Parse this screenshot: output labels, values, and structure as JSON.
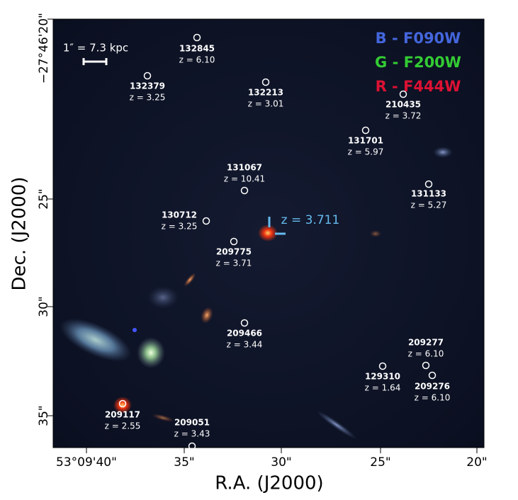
{
  "image": {
    "legend": [
      "B - F090W",
      "G - F200W",
      "R - F444W"
    ],
    "scale_bar": "1″ = 7.3 kpc",
    "main_redshift": "z = 3.711",
    "x_axis": {
      "label": "R.A. (J2000)",
      "ticks": [
        "53°09'40\"",
        "35\"",
        "30\"",
        "25\"",
        "20\""
      ]
    },
    "y_axis": {
      "label": "Dec. (J2000)",
      "ticks": [
        "−27°46'20\"",
        "25\"",
        "30\"",
        "35\""
      ]
    },
    "objects": [
      {
        "id": "132845",
        "z": "z = 6.10"
      },
      {
        "id": "132379",
        "z": "z = 3.25"
      },
      {
        "id": "132213",
        "z": "z = 3.01"
      },
      {
        "id": "210435",
        "z": "z = 3.72"
      },
      {
        "id": "131701",
        "z": "z = 5.97"
      },
      {
        "id": "131067",
        "z": "z = 10.41"
      },
      {
        "id": "131133",
        "z": "z = 5.27"
      },
      {
        "id": "130712",
        "z": "z = 3.25"
      },
      {
        "id": "209775",
        "z": "z = 3.71"
      },
      {
        "id": "209466",
        "z": "z = 3.44"
      },
      {
        "id": "209277",
        "z": "z = 6.10"
      },
      {
        "id": "129310",
        "z": "z = 1.64"
      },
      {
        "id": "209276",
        "z": "z = 6.10"
      },
      {
        "id": "209117",
        "z": "z = 2.55"
      },
      {
        "id": "209051",
        "z": "z = 3.43"
      }
    ]
  }
}
